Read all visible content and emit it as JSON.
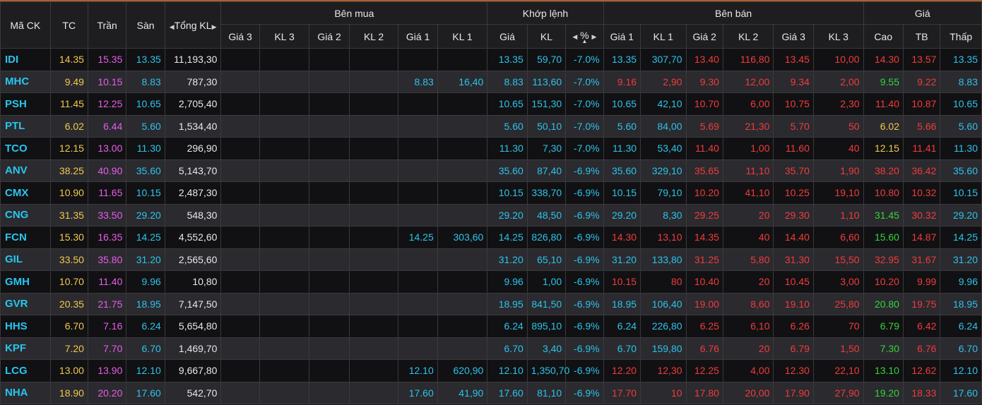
{
  "header": {
    "symbol": "Mã CK",
    "ref": "TC",
    "ceil": "Trần",
    "floor": "Sàn",
    "total_vol": "Tổng KL",
    "buy_group": "Bên mua",
    "match_group": "Khớp lệnh",
    "sell_group": "Bên bán",
    "price_group": "Giá",
    "bid3": "Giá 3",
    "bvol3": "KL 3",
    "bid2": "Giá 2",
    "bvol2": "KL 2",
    "bid1": "Giá 1",
    "bvol1": "KL 1",
    "m_price": "Giá",
    "m_vol": "KL",
    "m_pct": "%",
    "ask1": "Giá 1",
    "avol1": "KL 1",
    "ask2": "Giá 2",
    "avol2": "KL 2",
    "ask3": "Giá 3",
    "avol3": "KL 3",
    "high": "Cao",
    "avg": "TB",
    "low": "Thấp"
  },
  "colors": {
    "ref": "#f2c94c",
    "ceil": "#e95ce9",
    "floor": "#2dc3ea",
    "down": "#f23b3b",
    "up": "#36d33a",
    "accent_border": "#a9612d"
  },
  "rows": [
    {
      "sym": "IDI",
      "tc": "14.35",
      "tran": "15.35",
      "san": "13.35",
      "tkl": "11,193,30",
      "b3": "",
      "bk3": "",
      "b2": "",
      "bk2": "",
      "b1": "",
      "bk1": "",
      "mp": "13.35",
      "mv": "59,70",
      "pct": "-7.0%",
      "a1": "13.35",
      "ak1": "307,70",
      "a2": "13.40",
      "ak2": "116,80",
      "a3": "13.45",
      "ak3": "10,00",
      "hi": "14.30",
      "av": "13.57",
      "lo": "13.35",
      "a1c": "c",
      "a2c": "r",
      "a3c": "r",
      "hic": "r",
      "avc": "r",
      "loc": "c"
    },
    {
      "sym": "MHC",
      "tc": "9.49",
      "tran": "10.15",
      "san": "8.83",
      "tkl": "787,30",
      "b3": "",
      "bk3": "",
      "b2": "",
      "bk2": "",
      "b1": "8.83",
      "bk1": "16,40",
      "mp": "8.83",
      "mv": "113,60",
      "pct": "-7.0%",
      "a1": "9.16",
      "ak1": "2,90",
      "a2": "9.30",
      "ak2": "12,00",
      "a3": "9.34",
      "ak3": "2,00",
      "hi": "9.55",
      "av": "9.22",
      "lo": "8.83",
      "a1c": "r",
      "a2c": "r",
      "a3c": "r",
      "hic": "g",
      "avc": "r",
      "loc": "c"
    },
    {
      "sym": "PSH",
      "tc": "11.45",
      "tran": "12.25",
      "san": "10.65",
      "tkl": "2,705,40",
      "b3": "",
      "bk3": "",
      "b2": "",
      "bk2": "",
      "b1": "",
      "bk1": "",
      "mp": "10.65",
      "mv": "151,30",
      "pct": "-7.0%",
      "a1": "10.65",
      "ak1": "42,10",
      "a2": "10.70",
      "ak2": "6,00",
      "a3": "10.75",
      "ak3": "2,30",
      "hi": "11.40",
      "av": "10.87",
      "lo": "10.65",
      "a1c": "c",
      "a2c": "r",
      "a3c": "r",
      "hic": "r",
      "avc": "r",
      "loc": "c"
    },
    {
      "sym": "PTL",
      "tc": "6.02",
      "tran": "6.44",
      "san": "5.60",
      "tkl": "1,534,40",
      "b3": "",
      "bk3": "",
      "b2": "",
      "bk2": "",
      "b1": "",
      "bk1": "",
      "mp": "5.60",
      "mv": "50,10",
      "pct": "-7.0%",
      "a1": "5.60",
      "ak1": "84,00",
      "a2": "5.69",
      "ak2": "21,30",
      "a3": "5.70",
      "ak3": "50",
      "hi": "6.02",
      "av": "5.66",
      "lo": "5.60",
      "a1c": "c",
      "a2c": "r",
      "a3c": "r",
      "hic": "y",
      "avc": "r",
      "loc": "c"
    },
    {
      "sym": "TCO",
      "tc": "12.15",
      "tran": "13.00",
      "san": "11.30",
      "tkl": "296,90",
      "b3": "",
      "bk3": "",
      "b2": "",
      "bk2": "",
      "b1": "",
      "bk1": "",
      "mp": "11.30",
      "mv": "7,30",
      "pct": "-7.0%",
      "a1": "11.30",
      "ak1": "53,40",
      "a2": "11.40",
      "ak2": "1,00",
      "a3": "11.60",
      "ak3": "40",
      "hi": "12.15",
      "av": "11.41",
      "lo": "11.30",
      "a1c": "c",
      "a2c": "r",
      "a3c": "r",
      "hic": "y",
      "avc": "r",
      "loc": "c"
    },
    {
      "sym": "ANV",
      "tc": "38.25",
      "tran": "40.90",
      "san": "35.60",
      "tkl": "5,143,70",
      "b3": "",
      "bk3": "",
      "b2": "",
      "bk2": "",
      "b1": "",
      "bk1": "",
      "mp": "35.60",
      "mv": "87,40",
      "pct": "-6.9%",
      "a1": "35.60",
      "ak1": "329,10",
      "a2": "35.65",
      "ak2": "11,10",
      "a3": "35.70",
      "ak3": "1,90",
      "hi": "38.20",
      "av": "36.42",
      "lo": "35.60",
      "a1c": "c",
      "a2c": "r",
      "a3c": "r",
      "hic": "r",
      "avc": "r",
      "loc": "c"
    },
    {
      "sym": "CMX",
      "tc": "10.90",
      "tran": "11.65",
      "san": "10.15",
      "tkl": "2,487,30",
      "b3": "",
      "bk3": "",
      "b2": "",
      "bk2": "",
      "b1": "",
      "bk1": "",
      "mp": "10.15",
      "mv": "338,70",
      "pct": "-6.9%",
      "a1": "10.15",
      "ak1": "79,10",
      "a2": "10.20",
      "ak2": "41,10",
      "a3": "10.25",
      "ak3": "19,10",
      "hi": "10.80",
      "av": "10.32",
      "lo": "10.15",
      "a1c": "c",
      "a2c": "r",
      "a3c": "r",
      "hic": "r",
      "avc": "r",
      "loc": "c"
    },
    {
      "sym": "CNG",
      "tc": "31.35",
      "tran": "33.50",
      "san": "29.20",
      "tkl": "548,30",
      "b3": "",
      "bk3": "",
      "b2": "",
      "bk2": "",
      "b1": "",
      "bk1": "",
      "mp": "29.20",
      "mv": "48,50",
      "pct": "-6.9%",
      "a1": "29.20",
      "ak1": "8,30",
      "a2": "29.25",
      "ak2": "20",
      "a3": "29.30",
      "ak3": "1,10",
      "hi": "31.45",
      "av": "30.32",
      "lo": "29.20",
      "a1c": "c",
      "a2c": "r",
      "a3c": "r",
      "hic": "g",
      "avc": "r",
      "loc": "c"
    },
    {
      "sym": "FCN",
      "tc": "15.30",
      "tran": "16.35",
      "san": "14.25",
      "tkl": "4,552,60",
      "b3": "",
      "bk3": "",
      "b2": "",
      "bk2": "",
      "b1": "14.25",
      "bk1": "303,60",
      "mp": "14.25",
      "mv": "826,80",
      "pct": "-6.9%",
      "a1": "14.30",
      "ak1": "13,10",
      "a2": "14.35",
      "ak2": "40",
      "a3": "14.40",
      "ak3": "6,60",
      "hi": "15.60",
      "av": "14.87",
      "lo": "14.25",
      "a1c": "r",
      "a2c": "r",
      "a3c": "r",
      "hic": "g",
      "avc": "r",
      "loc": "c"
    },
    {
      "sym": "GIL",
      "tc": "33.50",
      "tran": "35.80",
      "san": "31.20",
      "tkl": "2,565,60",
      "b3": "",
      "bk3": "",
      "b2": "",
      "bk2": "",
      "b1": "",
      "bk1": "",
      "mp": "31.20",
      "mv": "65,10",
      "pct": "-6.9%",
      "a1": "31.20",
      "ak1": "133,80",
      "a2": "31.25",
      "ak2": "5,80",
      "a3": "31.30",
      "ak3": "15,50",
      "hi": "32.95",
      "av": "31.67",
      "lo": "31.20",
      "a1c": "c",
      "a2c": "r",
      "a3c": "r",
      "hic": "r",
      "avc": "r",
      "loc": "c"
    },
    {
      "sym": "GMH",
      "tc": "10.70",
      "tran": "11.40",
      "san": "9.96",
      "tkl": "10,80",
      "b3": "",
      "bk3": "",
      "b2": "",
      "bk2": "",
      "b1": "",
      "bk1": "",
      "mp": "9.96",
      "mv": "1,00",
      "pct": "-6.9%",
      "a1": "10.15",
      "ak1": "80",
      "a2": "10.40",
      "ak2": "20",
      "a3": "10.45",
      "ak3": "3,00",
      "hi": "10.20",
      "av": "9.99",
      "lo": "9.96",
      "a1c": "r",
      "a2c": "r",
      "a3c": "r",
      "hic": "r",
      "avc": "r",
      "loc": "c"
    },
    {
      "sym": "GVR",
      "tc": "20.35",
      "tran": "21.75",
      "san": "18.95",
      "tkl": "7,147,50",
      "b3": "",
      "bk3": "",
      "b2": "",
      "bk2": "",
      "b1": "",
      "bk1": "",
      "mp": "18.95",
      "mv": "841,50",
      "pct": "-6.9%",
      "a1": "18.95",
      "ak1": "106,40",
      "a2": "19.00",
      "ak2": "8,60",
      "a3": "19.10",
      "ak3": "25,80",
      "hi": "20.80",
      "av": "19.75",
      "lo": "18.95",
      "a1c": "c",
      "a2c": "r",
      "a3c": "r",
      "hic": "g",
      "avc": "r",
      "loc": "c"
    },
    {
      "sym": "HHS",
      "tc": "6.70",
      "tran": "7.16",
      "san": "6.24",
      "tkl": "5,654,80",
      "b3": "",
      "bk3": "",
      "b2": "",
      "bk2": "",
      "b1": "",
      "bk1": "",
      "mp": "6.24",
      "mv": "895,10",
      "pct": "-6.9%",
      "a1": "6.24",
      "ak1": "226,80",
      "a2": "6.25",
      "ak2": "6,10",
      "a3": "6.26",
      "ak3": "70",
      "hi": "6.79",
      "av": "6.42",
      "lo": "6.24",
      "a1c": "c",
      "a2c": "r",
      "a3c": "r",
      "hic": "g",
      "avc": "r",
      "loc": "c"
    },
    {
      "sym": "KPF",
      "tc": "7.20",
      "tran": "7.70",
      "san": "6.70",
      "tkl": "1,469,70",
      "b3": "",
      "bk3": "",
      "b2": "",
      "bk2": "",
      "b1": "",
      "bk1": "",
      "mp": "6.70",
      "mv": "3,40",
      "pct": "-6.9%",
      "a1": "6.70",
      "ak1": "159,80",
      "a2": "6.76",
      "ak2": "20",
      "a3": "6.79",
      "ak3": "1,50",
      "hi": "7.30",
      "av": "6.76",
      "lo": "6.70",
      "a1c": "c",
      "a2c": "r",
      "a3c": "r",
      "hic": "g",
      "avc": "r",
      "loc": "c"
    },
    {
      "sym": "LCG",
      "tc": "13.00",
      "tran": "13.90",
      "san": "12.10",
      "tkl": "9,667,80",
      "b3": "",
      "bk3": "",
      "b2": "",
      "bk2": "",
      "b1": "12.10",
      "bk1": "620,90",
      "mp": "12.10",
      "mv": "1,350,70",
      "pct": "-6.9%",
      "a1": "12.20",
      "ak1": "12,30",
      "a2": "12.25",
      "ak2": "4,00",
      "a3": "12.30",
      "ak3": "22,10",
      "hi": "13.10",
      "av": "12.62",
      "lo": "12.10",
      "a1c": "r",
      "a2c": "r",
      "a3c": "r",
      "hic": "g",
      "avc": "r",
      "loc": "c"
    },
    {
      "sym": "NHA",
      "tc": "18.90",
      "tran": "20.20",
      "san": "17.60",
      "tkl": "542,70",
      "b3": "",
      "bk3": "",
      "b2": "",
      "bk2": "",
      "b1": "17.60",
      "bk1": "41,90",
      "mp": "17.60",
      "mv": "81,10",
      "pct": "-6.9%",
      "a1": "17.70",
      "ak1": "10",
      "a2": "17.80",
      "ak2": "20,00",
      "a3": "17.90",
      "ak3": "27,90",
      "hi": "19.20",
      "av": "18.33",
      "lo": "17.60",
      "a1c": "r",
      "a2c": "r",
      "a3c": "r",
      "hic": "g",
      "avc": "r",
      "loc": "c"
    }
  ]
}
